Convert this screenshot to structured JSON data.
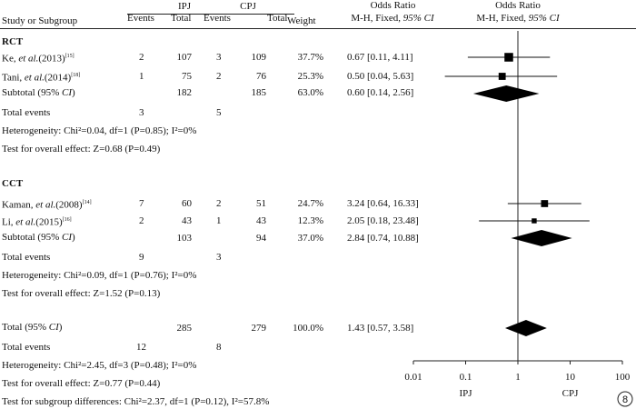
{
  "chart_data": {
    "type": "forest",
    "header": {
      "study": "Study or Subgroup",
      "group1": "IPJ",
      "group2": "CPJ",
      "events": "Events",
      "total": "Total",
      "weight": "Weight",
      "or_title": "Odds Ratio",
      "or_method_prefix": "M-H, Fixed, ",
      "or_method_ci": "95% CI",
      "plot_title": "Odds Ratio",
      "plot_method_prefix": "M-H, Fixed, ",
      "plot_method_ci": "95% CI"
    },
    "subgroups": [
      {
        "name": "RCT",
        "studies": [
          {
            "study_pre": "Ke, ",
            "study_it": "et al.",
            "study_post": "(2013)",
            "ref": "[15]",
            "e1": "2",
            "t1": "107",
            "e2": "3",
            "t2": "109",
            "weight": "37.7%",
            "ci_text": "0.67 [0.11, 4.11]",
            "or": 0.67,
            "lo": 0.11,
            "hi": 4.11,
            "w": 37.7
          },
          {
            "study_pre": "Tani, ",
            "study_it": "et al.",
            "study_post": "(2014)",
            "ref": "[18]",
            "e1": "1",
            "t1": "75",
            "e2": "2",
            "t2": "76",
            "weight": "25.3%",
            "ci_text": "0.50 [0.04, 5.63]",
            "or": 0.5,
            "lo": 0.04,
            "hi": 5.63,
            "w": 25.3
          }
        ],
        "subtotal": {
          "label_pre": "Subtotal (95% ",
          "label_ci": "CI",
          "label_post": ")",
          "t1": "182",
          "t2": "185",
          "weight": "63.0%",
          "ci_text": "0.60 [0.14, 2.56]",
          "or": 0.6,
          "lo": 0.14,
          "hi": 2.56
        },
        "total_events": {
          "label": "Total events",
          "e1": "3",
          "e2": "5"
        },
        "heterogeneity": "Heterogeneity: Chi²=0.04, df=1 (P=0.85); I²=0%",
        "overall": "Test for overall effect: Z=0.68 (P=0.49)"
      },
      {
        "name": "CCT",
        "studies": [
          {
            "study_pre": "Kaman, ",
            "study_it": "et al.",
            "study_post": "(2008)",
            "ref": "[14]",
            "e1": "7",
            "t1": "60",
            "e2": "2",
            "t2": "51",
            "weight": "24.7%",
            "ci_text": "3.24 [0.64, 16.33]",
            "or": 3.24,
            "lo": 0.64,
            "hi": 16.33,
            "w": 24.7
          },
          {
            "study_pre": "Li, ",
            "study_it": "et al.",
            "study_post": "(2015)",
            "ref": "[16]",
            "e1": "2",
            "t1": "43",
            "e2": "1",
            "t2": "43",
            "weight": "12.3%",
            "ci_text": "2.05 [0.18, 23.48]",
            "or": 2.05,
            "lo": 0.18,
            "hi": 23.48,
            "w": 12.3
          }
        ],
        "subtotal": {
          "label_pre": "Subtotal (95% ",
          "label_ci": "CI",
          "label_post": ")",
          "t1": "103",
          "t2": "94",
          "weight": "37.0%",
          "ci_text": "2.84 [0.74, 10.88]",
          "or": 2.84,
          "lo": 0.74,
          "hi": 10.88
        },
        "total_events": {
          "label": "Total events",
          "e1": "9",
          "e2": "3"
        },
        "heterogeneity": "Heterogeneity: Chi²=0.09, df=1 (P=0.76); I²=0%",
        "overall": "Test for overall effect: Z=1.52 (P=0.13)"
      }
    ],
    "total": {
      "label_pre": "Total (95% ",
      "label_ci": "CI",
      "label_post": ")",
      "t1": "285",
      "t2": "279",
      "weight": "100.0%",
      "ci_text": "1.43 [0.57, 3.58]",
      "or": 1.43,
      "lo": 0.57,
      "hi": 3.58
    },
    "total_events": {
      "label": "Total events",
      "e1": "12",
      "e2": "8"
    },
    "heterogeneity": "Heterogeneity: Chi²=2.45, df=3 (P=0.48); I²=0%",
    "overall": "Test for overall effect: Z=0.77 (P=0.44)",
    "subgroup_diff": "Test for subgroup differences: Chi²=2.37, df=1 (P=0.12), I²=57.8%",
    "axis": {
      "scale": "log",
      "ticks": [
        0.01,
        0.1,
        1,
        10,
        100
      ],
      "tick_labels": [
        "0.01",
        "0.1",
        "1",
        "10",
        "100"
      ],
      "xlim": [
        0.01,
        100
      ],
      "favours_left": "IPJ",
      "favours_right": "CPJ"
    },
    "badge": "8"
  }
}
